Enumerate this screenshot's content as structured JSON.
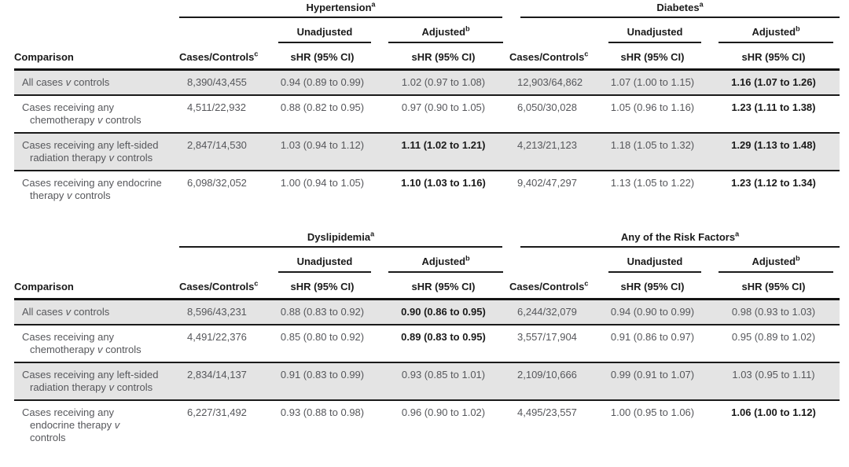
{
  "colors": {
    "row_stripe": "#e4e4e4",
    "rule": "#1a1a1a",
    "body_text": "#56575b",
    "header_text": "#1a1a1a"
  },
  "tables": [
    {
      "groups": [
        {
          "label": "Hypertension",
          "sup": "a"
        },
        {
          "label": "Diabetes",
          "sup": "a"
        }
      ],
      "subcols": {
        "unadjusted": "Unadjusted",
        "adjusted": "Adjusted",
        "adjusted_sup": "b"
      },
      "columns": {
        "comparison": "Comparison",
        "cases_controls": "Cases/Controls",
        "cases_controls_sup": "c",
        "shr": "sHR (95% CI)"
      },
      "rows": [
        {
          "comparison": "All cases v controls",
          "shaded": true,
          "g1": {
            "cases": "8,390/43,455",
            "unadjusted": "0.94 (0.89 to 0.99)",
            "adjusted": "1.02 (0.97 to 1.08)",
            "adjusted_bold": false
          },
          "g2": {
            "cases": "12,903/64,862",
            "unadjusted": "1.07 (1.00 to 1.15)",
            "adjusted": "1.16 (1.07 to 1.26)",
            "adjusted_bold": true
          }
        },
        {
          "comparison": "Cases receiving any\nchemotherapy v controls",
          "shaded": false,
          "g1": {
            "cases": "4,511/22,932",
            "unadjusted": "0.88 (0.82 to 0.95)",
            "adjusted": "0.97 (0.90 to 1.05)",
            "adjusted_bold": false
          },
          "g2": {
            "cases": "6,050/30,028",
            "unadjusted": "1.05 (0.96 to 1.16)",
            "adjusted": "1.23 (1.11 to 1.38)",
            "adjusted_bold": true
          }
        },
        {
          "comparison": "Cases receiving any left-sided\nradiation therapy v controls",
          "shaded": true,
          "g1": {
            "cases": "2,847/14,530",
            "unadjusted": "1.03 (0.94 to 1.12)",
            "adjusted": "1.11 (1.02 to 1.21)",
            "adjusted_bold": true
          },
          "g2": {
            "cases": "4,213/21,123",
            "unadjusted": "1.18 (1.05 to 1.32)",
            "adjusted": "1.29 (1.13 to 1.48)",
            "adjusted_bold": true
          }
        },
        {
          "comparison": "Cases receiving any endocrine\ntherapy v controls",
          "shaded": false,
          "g1": {
            "cases": "6,098/32,052",
            "unadjusted": "1.00 (0.94 to 1.05)",
            "adjusted": "1.10 (1.03 to 1.16)",
            "adjusted_bold": true
          },
          "g2": {
            "cases": "9,402/47,297",
            "unadjusted": "1.13 (1.05 to 1.22)",
            "adjusted": "1.23 (1.12 to 1.34)",
            "adjusted_bold": true
          }
        }
      ]
    },
    {
      "groups": [
        {
          "label": "Dyslipidemia",
          "sup": "a"
        },
        {
          "label": "Any of the Risk Factors",
          "sup": "a"
        }
      ],
      "subcols": {
        "unadjusted": "Unadjusted",
        "adjusted": "Adjusted",
        "adjusted_sup": "b"
      },
      "columns": {
        "comparison": "Comparison",
        "cases_controls": "Cases/Controls",
        "cases_controls_sup": "c",
        "shr": "sHR (95% CI)"
      },
      "rows": [
        {
          "comparison": "All cases v controls",
          "shaded": true,
          "g1": {
            "cases": "8,596/43,231",
            "unadjusted": "0.88 (0.83 to 0.92)",
            "adjusted": "0.90 (0.86 to 0.95)",
            "adjusted_bold": true
          },
          "g2": {
            "cases": "6,244/32,079",
            "unadjusted": "0.94 (0.90 to 0.99)",
            "adjusted": "0.98 (0.93 to 1.03)",
            "adjusted_bold": false
          }
        },
        {
          "comparison": "Cases receiving any\nchemotherapy v controls",
          "shaded": false,
          "g1": {
            "cases": "4,491/22,376",
            "unadjusted": "0.85 (0.80 to 0.92)",
            "adjusted": "0.89 (0.83 to 0.95)",
            "adjusted_bold": true
          },
          "g2": {
            "cases": "3,557/17,904",
            "unadjusted": "0.91 (0.86 to 0.97)",
            "adjusted": "0.95 (0.89 to 1.02)",
            "adjusted_bold": false
          }
        },
        {
          "comparison": "Cases receiving any left-sided\nradiation therapy v controls",
          "shaded": true,
          "g1": {
            "cases": "2,834/14,137",
            "unadjusted": "0.91 (0.83 to 0.99)",
            "adjusted": "0.93 (0.85 to 1.01)",
            "adjusted_bold": false
          },
          "g2": {
            "cases": "2,109/10,666",
            "unadjusted": "0.99 (0.91 to 1.07)",
            "adjusted": "1.03 (0.95 to 1.11)",
            "adjusted_bold": false
          }
        },
        {
          "comparison": "Cases receiving any\nendocrine therapy v\ncontrols",
          "shaded": false,
          "g1": {
            "cases": "6,227/31,492",
            "unadjusted": "0.93 (0.88 to 0.98)",
            "adjusted": "0.96 (0.90 to 1.02)",
            "adjusted_bold": false
          },
          "g2": {
            "cases": "4,495/23,557",
            "unadjusted": "1.00 (0.95 to 1.06)",
            "adjusted": "1.06 (1.00 to 1.12)",
            "adjusted_bold": true
          }
        }
      ]
    }
  ]
}
